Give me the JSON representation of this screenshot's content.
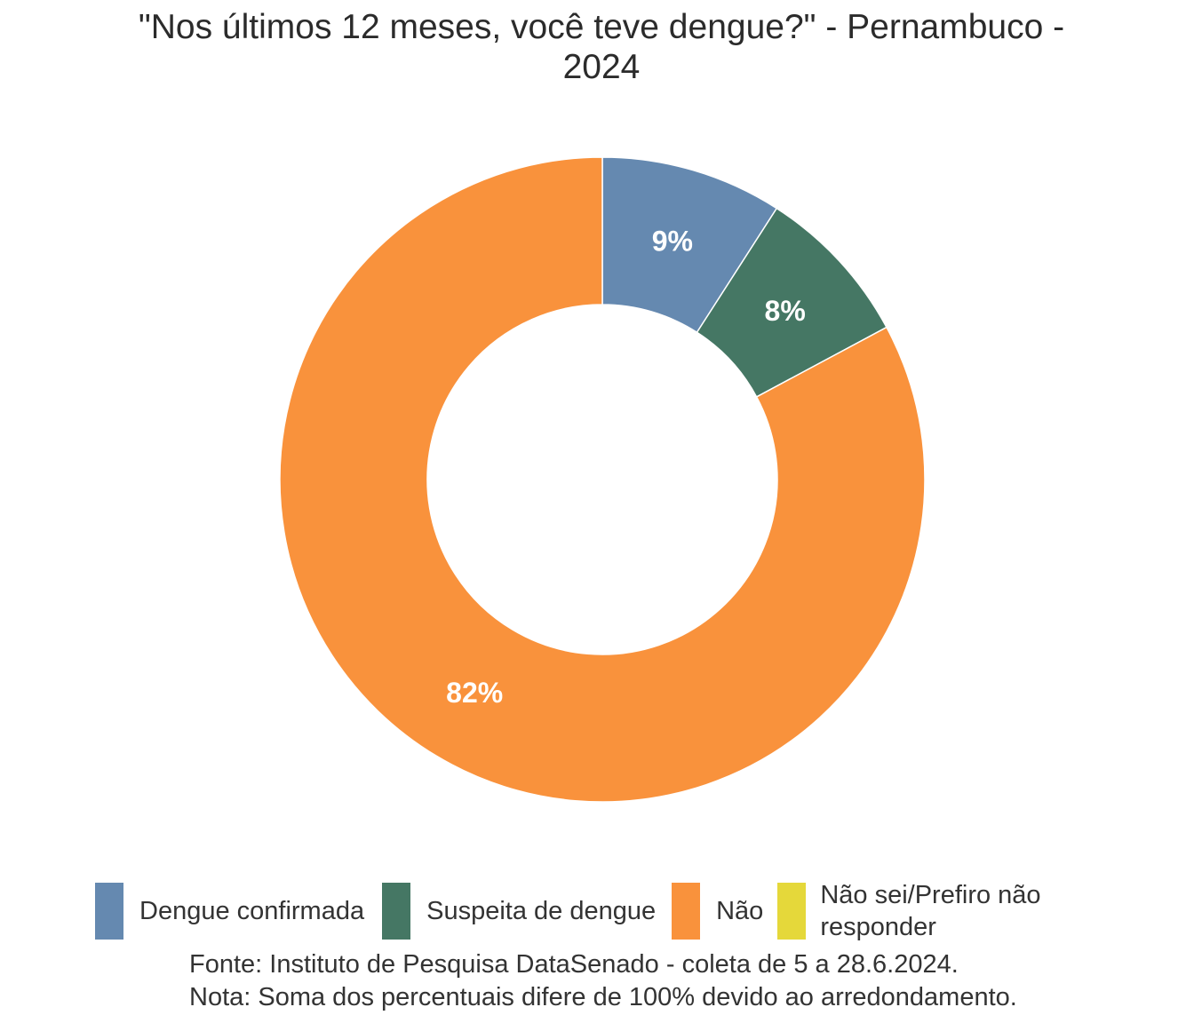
{
  "chart_data": {
    "type": "pie",
    "donut": true,
    "title_lines": [
      "\"Nos últimos 12 meses, você teve dengue?\" - Pernambuco -",
      "2024"
    ],
    "categories": [
      "Dengue confirmada",
      "Suspeita de dengue",
      "Não",
      "Não sei/Prefiro não responder"
    ],
    "values": [
      9,
      8,
      82,
      0
    ],
    "value_labels": [
      "9%",
      "8%",
      "82%",
      ""
    ],
    "colors": [
      "#6589b0",
      "#457764",
      "#f9923c",
      "#e5d83a"
    ],
    "legend_position": "bottom"
  },
  "legend": {
    "items": [
      {
        "label": "Dengue confirmada",
        "color": "#6589b0"
      },
      {
        "label": "Suspeita de dengue",
        "color": "#457764"
      },
      {
        "label": "Não",
        "color": "#f9923c"
      },
      {
        "label": "Não sei/Prefiro não responder",
        "color": "#e5d83a"
      }
    ]
  },
  "footnotes": {
    "source": "Fonte: Instituto de Pesquisa DataSenado - coleta de 5 a 28.6.2024.",
    "note": "Nota: Soma dos percentuais difere de 100% devido ao arredondamento."
  }
}
